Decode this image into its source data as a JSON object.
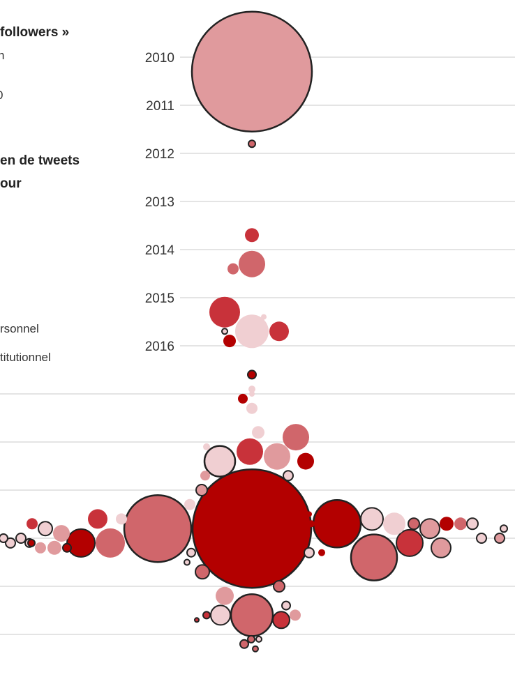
{
  "legend": {
    "size_title": "followers »",
    "size_line1": "n",
    "size_line2": "0",
    "color_title_line1": "en de tweets",
    "color_title_line2": "our",
    "type_personal": "rsonnel",
    "type_institutional": "titutionnel"
  },
  "chart_data": {
    "type": "scatter",
    "subtype": "beeswarm bubble",
    "y_axis": {
      "ticks": [
        "2010",
        "2011",
        "2012",
        "2013",
        "2014",
        "2015",
        "2016"
      ],
      "range": [
        2010,
        2022
      ],
      "grid": true
    },
    "colors": [
      "#b30000",
      "#c8323a",
      "#d0666b",
      "#e09a9d",
      "#f0cfd2"
    ],
    "outline_color": "#222222",
    "bubbles": [
      {
        "year": 2010.3,
        "tone": 3,
        "outlined": true
      },
      {
        "year": 2011.8,
        "tone": 2,
        "outlined": true
      },
      {
        "year": 2013.7,
        "tone": 1,
        "outlined": false
      },
      {
        "year": 2014.3,
        "tone": 2,
        "outlined": false
      },
      {
        "year": 2014.4,
        "tone": 2,
        "outlined": false
      },
      {
        "year": 2015.3,
        "tone": 1,
        "outlined": false
      },
      {
        "year": 2015.7,
        "tone": 4,
        "outlined": false
      },
      {
        "year": 2015.7,
        "tone": 1,
        "outlined": false
      },
      {
        "year": 2015.9,
        "tone": 0,
        "outlined": false
      },
      {
        "year": 2015.7,
        "tone": 4,
        "outlined": true
      },
      {
        "year": 2015.4,
        "tone": 4,
        "outlined": false
      },
      {
        "year": 2016.6,
        "tone": 0,
        "outlined": true
      },
      {
        "year": 2016.9,
        "tone": 4,
        "outlined": false
      },
      {
        "year": 2017.1,
        "tone": 0,
        "outlined": false
      },
      {
        "year": 2017.3,
        "tone": 4,
        "outlined": false
      },
      {
        "year": 2017.0,
        "tone": 4,
        "outlined": false
      },
      {
        "year": 2017.8,
        "tone": 4,
        "outlined": false
      },
      {
        "year": 2017.9,
        "tone": 2,
        "outlined": false
      },
      {
        "year": 2018.2,
        "tone": 1,
        "outlined": false
      },
      {
        "year": 2018.3,
        "tone": 3,
        "outlined": false
      },
      {
        "year": 2018.4,
        "tone": 4,
        "outlined": true
      },
      {
        "year": 2018.4,
        "tone": 0,
        "outlined": false
      },
      {
        "year": 2018.7,
        "tone": 4,
        "outlined": true
      },
      {
        "year": 2019.8,
        "tone": 0,
        "outlined": true
      },
      {
        "year": 2019.8,
        "tone": 2,
        "outlined": true
      },
      {
        "year": 2020.1,
        "tone": 2,
        "outlined": false
      },
      {
        "year": 2019.6,
        "tone": 1,
        "outlined": false
      },
      {
        "year": 2020.1,
        "tone": 0,
        "outlined": true
      },
      {
        "year": 2019.7,
        "tone": 0,
        "outlined": true
      },
      {
        "year": 2019.6,
        "tone": 4,
        "outlined": true
      },
      {
        "year": 2020.4,
        "tone": 2,
        "outlined": true
      },
      {
        "year": 2020.1,
        "tone": 1,
        "outlined": true
      },
      {
        "year": 2019.7,
        "tone": 4,
        "outlined": false
      },
      {
        "year": 2019.8,
        "tone": 3,
        "outlined": true
      },
      {
        "year": 2020.2,
        "tone": 3,
        "outlined": true
      },
      {
        "year": 2019.7,
        "tone": 0,
        "outlined": false
      },
      {
        "year": 2019.7,
        "tone": 2,
        "outlined": true
      },
      {
        "year": 2019.7,
        "tone": 2,
        "outlined": false
      },
      {
        "year": 2019.7,
        "tone": 4,
        "outlined": true
      },
      {
        "year": 2020.0,
        "tone": 4,
        "outlined": true
      },
      {
        "year": 2020.0,
        "tone": 3,
        "outlined": true
      },
      {
        "year": 2019.8,
        "tone": 4,
        "outlined": true
      },
      {
        "year": 2019.7,
        "tone": 1,
        "outlined": false
      },
      {
        "year": 2019.8,
        "tone": 4,
        "outlined": true
      },
      {
        "year": 2020.0,
        "tone": 4,
        "outlined": true
      },
      {
        "year": 2020.1,
        "tone": 4,
        "outlined": true
      },
      {
        "year": 2020.1,
        "tone": 4,
        "outlined": true
      },
      {
        "year": 2020.0,
        "tone": 4,
        "outlined": true
      },
      {
        "year": 2020.1,
        "tone": 0,
        "outlined": true
      },
      {
        "year": 2020.2,
        "tone": 3,
        "outlined": false
      },
      {
        "year": 2020.2,
        "tone": 3,
        "outlined": false
      },
      {
        "year": 2019.9,
        "tone": 3,
        "outlined": false
      },
      {
        "year": 2020.2,
        "tone": 0,
        "outlined": true
      },
      {
        "year": 2020.7,
        "tone": 2,
        "outlined": true
      },
      {
        "year": 2021.6,
        "tone": 2,
        "outlined": true
      },
      {
        "year": 2021.2,
        "tone": 3,
        "outlined": false
      },
      {
        "year": 2021.6,
        "tone": 4,
        "outlined": true
      },
      {
        "year": 2021.7,
        "tone": 1,
        "outlined": true
      },
      {
        "year": 2021.6,
        "tone": 1,
        "outlined": true
      },
      {
        "year": 2021.6,
        "tone": 3,
        "outlined": false
      },
      {
        "year": 2021.4,
        "tone": 4,
        "outlined": true
      },
      {
        "year": 2022.2,
        "tone": 2,
        "outlined": true
      },
      {
        "year": 2022.1,
        "tone": 2,
        "outlined": true
      },
      {
        "year": 2022.3,
        "tone": 2,
        "outlined": true
      },
      {
        "year": 2022.1,
        "tone": 4,
        "outlined": true
      },
      {
        "year": 2021.7,
        "tone": 1,
        "outlined": true
      },
      {
        "year": 2020.3,
        "tone": 4,
        "outlined": true
      },
      {
        "year": 2020.5,
        "tone": 4,
        "outlined": true
      },
      {
        "year": 2020.3,
        "tone": 4,
        "outlined": true
      },
      {
        "year": 2019.7,
        "tone": 0,
        "outlined": false
      },
      {
        "year": 2018.7,
        "tone": 3,
        "outlined": false
      },
      {
        "year": 2019.3,
        "tone": 4,
        "outlined": false
      },
      {
        "year": 2019.0,
        "tone": 3,
        "outlined": true
      },
      {
        "year": 2021.0,
        "tone": 2,
        "outlined": true
      },
      {
        "year": 2019.5,
        "tone": 0,
        "outlined": false
      },
      {
        "year": 2020.3,
        "tone": 0,
        "outlined": false
      },
      {
        "year": 2018.1,
        "tone": 4,
        "outlined": false
      },
      {
        "year": 2019.6,
        "tone": 4,
        "outlined": false
      }
    ]
  }
}
